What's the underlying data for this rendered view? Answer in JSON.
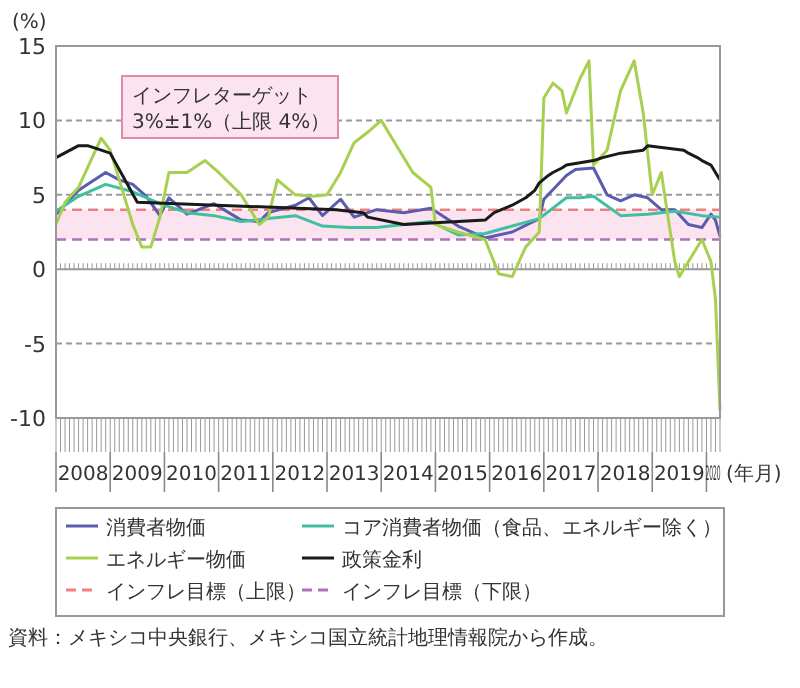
{
  "chart_data": {
    "type": "line",
    "ylabel": "(%)",
    "xlabel": "(年月)",
    "xlim": [
      "2008-01",
      "2020-04"
    ],
    "ylim": [
      -10,
      15
    ],
    "yticks": [
      -10,
      -5,
      0,
      5,
      10,
      15
    ],
    "xticks": [
      {
        "value": "2008-07",
        "label": "2008"
      },
      {
        "value": "2009-07",
        "label": "2009"
      },
      {
        "value": "2010-07",
        "label": "2010"
      },
      {
        "value": "2011-07",
        "label": "2011"
      },
      {
        "value": "2012-07",
        "label": "2012"
      },
      {
        "value": "2013-07",
        "label": "2013"
      },
      {
        "value": "2014-07",
        "label": "2014"
      },
      {
        "value": "2015-07",
        "label": "2015"
      },
      {
        "value": "2016-07",
        "label": "2016"
      },
      {
        "value": "2017-07",
        "label": "2017"
      },
      {
        "value": "2018-07",
        "label": "2018"
      },
      {
        "value": "2019-07",
        "label": "2019"
      },
      {
        "value": "2020-02-15",
        "label": "2020"
      }
    ],
    "grid": "y",
    "legend": "bottom",
    "series": [
      {
        "name": "消費者物価",
        "color": "#5b5bb0",
        "x": [
          "2008-01",
          "2008-06",
          "2008-12",
          "2009-03",
          "2009-06",
          "2009-09",
          "2009-12",
          "2010-02",
          "2010-06",
          "2010-12",
          "2011-06",
          "2011-10",
          "2011-12",
          "2012-06",
          "2012-09",
          "2012-12",
          "2013-04",
          "2013-07",
          "2013-12",
          "2014-06",
          "2014-12",
          "2015-06",
          "2015-12",
          "2016-06",
          "2016-12",
          "2017-01",
          "2017-06",
          "2017-08",
          "2017-12",
          "2018-03",
          "2018-06",
          "2018-09",
          "2018-12",
          "2019-03",
          "2019-06",
          "2019-09",
          "2019-12",
          "2020-02",
          "2020-03",
          "2020-04"
        ],
        "values": [
          3.7,
          5.3,
          6.5,
          6.0,
          5.7,
          4.9,
          3.6,
          4.8,
          3.7,
          4.4,
          3.3,
          3.2,
          3.8,
          4.3,
          4.8,
          3.6,
          4.7,
          3.5,
          4.0,
          3.8,
          4.1,
          2.9,
          2.1,
          2.5,
          3.4,
          4.7,
          6.3,
          6.7,
          6.8,
          5.0,
          4.6,
          5.0,
          4.8,
          4.0,
          4.0,
          3.0,
          2.8,
          3.7,
          3.3,
          2.2
        ]
      },
      {
        "name": "コア消費者物価（食品、エネルギー除く）",
        "color": "#40c0a0",
        "x": [
          "2008-01",
          "2008-06",
          "2008-12",
          "2009-06",
          "2009-12",
          "2010-06",
          "2010-12",
          "2011-06",
          "2011-12",
          "2012-06",
          "2012-12",
          "2013-06",
          "2013-12",
          "2014-06",
          "2014-12",
          "2015-06",
          "2015-12",
          "2016-06",
          "2016-12",
          "2017-06",
          "2017-09",
          "2017-12",
          "2018-06",
          "2018-12",
          "2019-06",
          "2019-12",
          "2020-04"
        ],
        "values": [
          3.9,
          4.9,
          5.7,
          5.2,
          4.4,
          3.8,
          3.6,
          3.2,
          3.4,
          3.6,
          2.9,
          2.8,
          2.8,
          3.0,
          3.2,
          2.3,
          2.4,
          2.9,
          3.4,
          4.8,
          4.8,
          4.9,
          3.6,
          3.7,
          3.9,
          3.6,
          3.5
        ]
      },
      {
        "name": "エネルギー物価",
        "color": "#a8d050",
        "x": [
          "2008-01",
          "2008-03",
          "2008-06",
          "2008-09",
          "2008-11",
          "2009-01",
          "2009-03",
          "2009-06",
          "2009-08",
          "2009-10",
          "2009-12",
          "2010-02",
          "2010-06",
          "2010-10",
          "2011-01",
          "2011-06",
          "2011-10",
          "2011-12",
          "2012-02",
          "2012-06",
          "2012-10",
          "2013-01",
          "2013-04",
          "2013-07",
          "2013-10",
          "2014-01",
          "2014-04",
          "2014-08",
          "2014-12",
          "2015-01",
          "2015-06",
          "2015-12",
          "2016-03",
          "2016-06",
          "2016-09",
          "2016-12",
          "2017-01",
          "2017-03",
          "2017-05",
          "2017-06",
          "2017-09",
          "2017-11",
          "2017-12",
          "2018-03",
          "2018-06",
          "2018-09",
          "2018-11",
          "2019-01",
          "2019-03",
          "2019-06",
          "2019-07",
          "2019-10",
          "2019-12",
          "2020-02",
          "2020-03",
          "2020-04"
        ],
        "values": [
          3.0,
          4.5,
          5.5,
          7.5,
          8.8,
          8.0,
          6.0,
          3.0,
          1.5,
          1.5,
          3.5,
          6.5,
          6.5,
          7.3,
          6.5,
          5.0,
          3.0,
          3.5,
          6.0,
          5.0,
          4.9,
          5.0,
          6.5,
          8.5,
          9.2,
          10.0,
          8.5,
          6.5,
          5.5,
          3.0,
          2.5,
          2.0,
          -0.3,
          -0.5,
          1.5,
          2.5,
          11.5,
          12.5,
          12.0,
          10.5,
          12.8,
          14.0,
          7.0,
          8.0,
          12.0,
          14.0,
          10.5,
          5.0,
          6.5,
          0.5,
          -0.5,
          1.0,
          2.0,
          0.5,
          -2.0,
          -9.5
        ]
      },
      {
        "name": "政策金利",
        "color": "#1a1a1a",
        "x": [
          "2008-01",
          "2008-06",
          "2008-08",
          "2009-01",
          "2009-07",
          "2013-03",
          "2013-09",
          "2013-10",
          "2014-06",
          "2015-12",
          "2016-02",
          "2016-06",
          "2016-09",
          "2016-11",
          "2016-12",
          "2017-02",
          "2017-03",
          "2017-05",
          "2017-06",
          "2017-12",
          "2018-02",
          "2018-06",
          "2018-11",
          "2018-12",
          "2019-08",
          "2019-09",
          "2019-11",
          "2019-12",
          "2020-02",
          "2020-03",
          "2020-04"
        ],
        "values": [
          7.5,
          8.3,
          8.3,
          7.8,
          4.5,
          4.0,
          3.8,
          3.5,
          3.0,
          3.3,
          3.8,
          4.3,
          4.8,
          5.3,
          5.8,
          6.3,
          6.5,
          6.8,
          7.0,
          7.3,
          7.5,
          7.8,
          8.0,
          8.3,
          8.0,
          7.8,
          7.5,
          7.3,
          7.0,
          6.5,
          6.0
        ]
      }
    ],
    "ref_lines": [
      {
        "axis": "y",
        "value": 4,
        "label": "インフレ目標（上限）",
        "color": "#f08080",
        "line_style": "dashed"
      },
      {
        "axis": "y",
        "value": 2,
        "label": "インフレ目標（下限）",
        "color": "#b070c0",
        "line_style": "dashed"
      }
    ],
    "bands": [
      {
        "axis": "y",
        "from": 2,
        "to": 4,
        "color": "#fbe3ef"
      }
    ],
    "annotations": [
      "インフレターゲット\n3%±1%（上限 4%）",
      "資料：メキシコ中央銀行、メキシコ国立統計地理情報院から作成。"
    ]
  }
}
